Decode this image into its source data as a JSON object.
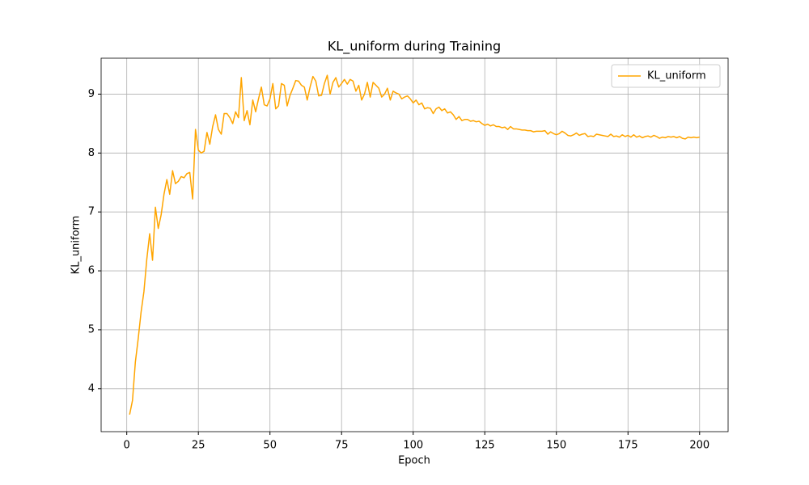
{
  "chart_data": {
    "type": "line",
    "title": "KL_uniform during Training",
    "x_label": "Epoch",
    "y_label": "KL_uniform",
    "x": [
      1,
      2,
      3,
      4,
      5,
      6,
      7,
      8,
      9,
      10,
      11,
      12,
      13,
      14,
      15,
      16,
      17,
      18,
      19,
      20,
      21,
      22,
      23,
      24,
      25,
      26,
      27,
      28,
      29,
      30,
      31,
      32,
      33,
      34,
      35,
      36,
      37,
      38,
      39,
      40,
      41,
      42,
      43,
      44,
      45,
      46,
      47,
      48,
      49,
      50,
      51,
      52,
      53,
      54,
      55,
      56,
      57,
      58,
      59,
      60,
      61,
      62,
      63,
      64,
      65,
      66,
      67,
      68,
      69,
      70,
      71,
      72,
      73,
      74,
      75,
      76,
      77,
      78,
      79,
      80,
      81,
      82,
      83,
      84,
      85,
      86,
      87,
      88,
      89,
      90,
      91,
      92,
      93,
      94,
      95,
      96,
      97,
      98,
      99,
      100,
      101,
      102,
      103,
      104,
      105,
      106,
      107,
      108,
      109,
      110,
      111,
      112,
      113,
      114,
      115,
      116,
      117,
      118,
      119,
      120,
      121,
      122,
      123,
      124,
      125,
      126,
      127,
      128,
      129,
      130,
      131,
      132,
      133,
      134,
      135,
      136,
      137,
      138,
      139,
      140,
      141,
      142,
      143,
      144,
      145,
      146,
      147,
      148,
      149,
      150,
      151,
      152,
      153,
      154,
      155,
      156,
      157,
      158,
      159,
      160,
      161,
      162,
      163,
      164,
      165,
      166,
      167,
      168,
      169,
      170,
      171,
      172,
      173,
      174,
      175,
      176,
      177,
      178,
      179,
      180,
      181,
      182,
      183,
      184,
      185,
      186,
      187,
      188,
      189,
      190,
      191,
      192,
      193,
      194,
      195,
      196,
      197,
      198,
      199,
      200
    ],
    "series": [
      {
        "name": "KL_uniform",
        "color": "#ffa500",
        "values": [
          3.56,
          3.8,
          4.45,
          4.85,
          5.3,
          5.65,
          6.2,
          6.63,
          6.18,
          7.08,
          6.72,
          6.95,
          7.3,
          7.55,
          7.3,
          7.7,
          7.48,
          7.52,
          7.6,
          7.58,
          7.65,
          7.67,
          7.22,
          8.4,
          8.05,
          8.0,
          8.03,
          8.35,
          8.15,
          8.45,
          8.65,
          8.4,
          8.32,
          8.67,
          8.67,
          8.6,
          8.5,
          8.7,
          8.6,
          9.28,
          8.55,
          8.72,
          8.48,
          8.9,
          8.7,
          8.92,
          9.12,
          8.82,
          8.8,
          8.92,
          9.18,
          8.75,
          8.8,
          9.18,
          9.15,
          8.8,
          8.98,
          9.1,
          9.23,
          9.22,
          9.15,
          9.12,
          8.9,
          9.12,
          9.3,
          9.22,
          8.97,
          8.98,
          9.18,
          9.32,
          9.0,
          9.2,
          9.28,
          9.12,
          9.18,
          9.25,
          9.17,
          9.25,
          9.22,
          9.05,
          9.15,
          8.9,
          9.0,
          9.2,
          8.95,
          9.2,
          9.15,
          9.1,
          8.95,
          9.0,
          9.1,
          8.9,
          9.05,
          9.02,
          9.0,
          8.92,
          8.95,
          8.97,
          8.92,
          8.85,
          8.9,
          8.82,
          8.85,
          8.75,
          8.77,
          8.76,
          8.67,
          8.75,
          8.78,
          8.72,
          8.75,
          8.68,
          8.7,
          8.65,
          8.57,
          8.62,
          8.55,
          8.57,
          8.57,
          8.54,
          8.55,
          8.53,
          8.54,
          8.5,
          8.47,
          8.49,
          8.46,
          8.48,
          8.45,
          8.45,
          8.43,
          8.44,
          8.4,
          8.45,
          8.41,
          8.41,
          8.4,
          8.39,
          8.39,
          8.38,
          8.38,
          8.36,
          8.37,
          8.37,
          8.37,
          8.38,
          8.32,
          8.36,
          8.33,
          8.31,
          8.33,
          8.37,
          8.34,
          8.3,
          8.29,
          8.31,
          8.34,
          8.3,
          8.32,
          8.33,
          8.28,
          8.29,
          8.28,
          8.32,
          8.31,
          8.3,
          8.29,
          8.28,
          8.32,
          8.28,
          8.29,
          8.27,
          8.31,
          8.28,
          8.3,
          8.27,
          8.31,
          8.27,
          8.29,
          8.26,
          8.28,
          8.29,
          8.27,
          8.3,
          8.28,
          8.25,
          8.27,
          8.26,
          8.28,
          8.27,
          8.28,
          8.26,
          8.28,
          8.25,
          8.24,
          8.27,
          8.26,
          8.27,
          8.26,
          8.27
        ]
      }
    ],
    "xlim": [
      -8.95,
      209.95
    ],
    "xticks": [
      0,
      25,
      50,
      75,
      100,
      125,
      150,
      175,
      200
    ],
    "ylim": [
      3.27,
      9.61
    ],
    "yticks": [
      4,
      5,
      6,
      7,
      8,
      9
    ],
    "grid": true,
    "legend": "upper right"
  }
}
